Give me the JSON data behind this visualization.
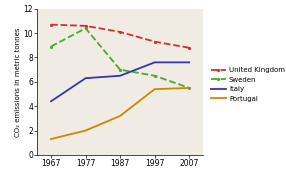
{
  "years": [
    1967,
    1977,
    1987,
    1997,
    2007
  ],
  "uk": [
    10.7,
    10.6,
    10.1,
    9.3,
    8.8
  ],
  "sweden": [
    8.9,
    10.4,
    7.0,
    6.5,
    5.5
  ],
  "italy": [
    4.4,
    6.3,
    6.5,
    7.6,
    7.6
  ],
  "portugal": [
    1.3,
    2.0,
    3.2,
    5.4,
    5.5
  ],
  "uk_color": "#d03030",
  "sweden_color": "#4aaa30",
  "italy_color": "#3333bb",
  "portugal_color": "#cc8800",
  "ylabel": "CO₂ emissions in metric tonnes",
  "ylim": [
    0,
    12
  ],
  "yticks": [
    0,
    2,
    4,
    6,
    8,
    10,
    12
  ],
  "xlim": [
    1963,
    2011
  ],
  "xticks": [
    1967,
    1977,
    1987,
    1997,
    2007
  ],
  "legend_labels": [
    "United Kingdom",
    "Sweden",
    "Italy",
    "Portugal"
  ],
  "plot_bg": "#f0ebe3",
  "fig_bg": "#ffffff"
}
